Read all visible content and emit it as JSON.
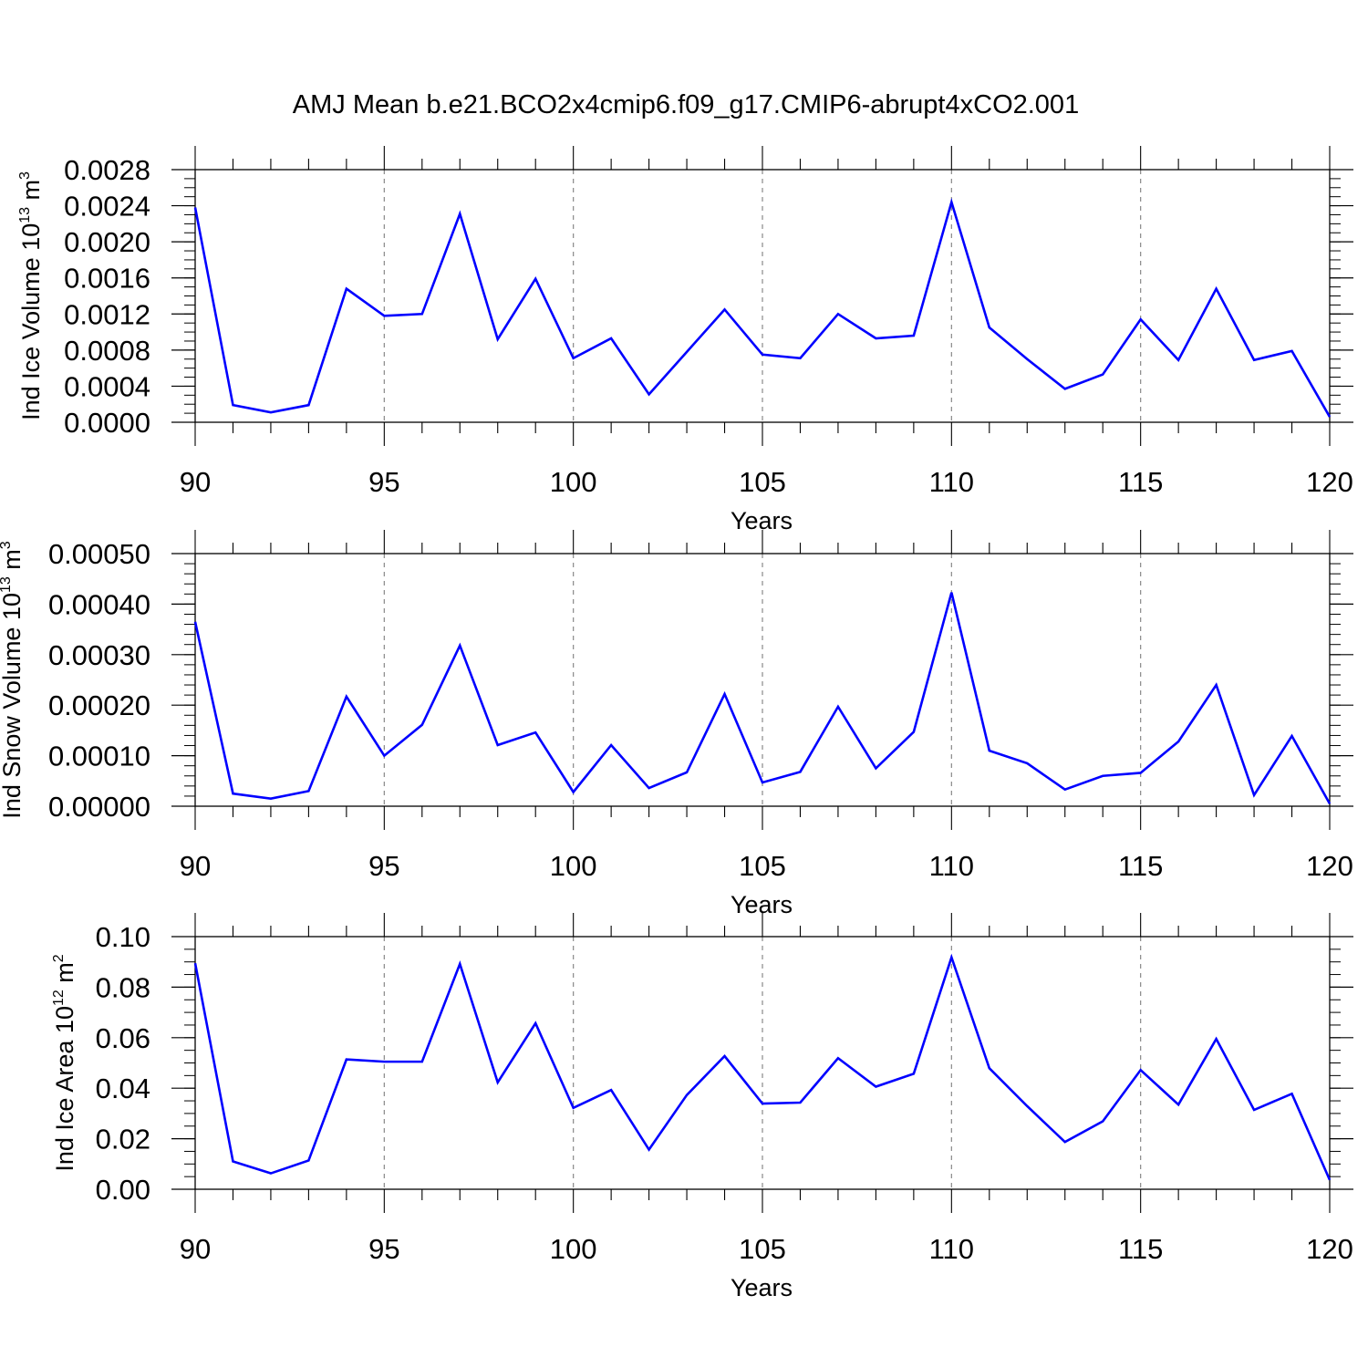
{
  "chart_data": {
    "title": "AMJ Mean b.e21.BCO2x4cmip6.f09_g17.CMIP6-abrupt4xCO2.001",
    "x": [
      90,
      91,
      92,
      93,
      94,
      95,
      96,
      97,
      98,
      99,
      100,
      101,
      102,
      103,
      104,
      105,
      106,
      107,
      108,
      109,
      110,
      111,
      112,
      113,
      114,
      115,
      116,
      117,
      118,
      119,
      120
    ],
    "xlim": [
      90,
      120
    ],
    "x_major_ticks": [
      90,
      95,
      100,
      105,
      110,
      115,
      120
    ],
    "x_tick_labels": [
      "90",
      "95",
      "100",
      "105",
      "110",
      "115",
      "120"
    ],
    "xlabel": "Years",
    "line_color": "#0000ff",
    "grid": "vertical dashed at major x ticks",
    "panels": [
      {
        "type": "line",
        "ylabel_main": "Ind Ice Volume 10",
        "ylabel_exp": "13",
        "ylabel_unit": " m",
        "ylabel_unit_exp": "3",
        "ylim": [
          0,
          0.0028
        ],
        "yticks": [
          0,
          0.0004,
          0.0008,
          0.0012,
          0.0016,
          0.002,
          0.0024,
          0.0028
        ],
        "ytick_labels": [
          "0.0000",
          "0.0004",
          "0.0008",
          "0.0012",
          "0.0016",
          "0.0020",
          "0.0024",
          "0.0028"
        ],
        "y_minor_step": 0.0001,
        "values": [
          0.00238,
          0.00019,
          0.00011,
          0.00019,
          0.00148,
          0.00118,
          0.0012,
          0.00231,
          0.00092,
          0.00159,
          0.00071,
          0.00093,
          0.00031,
          0.00078,
          0.00125,
          0.00075,
          0.00071,
          0.0012,
          0.00093,
          0.00096,
          0.00244,
          0.00105,
          0.0007,
          0.00037,
          0.00053,
          0.00114,
          0.00069,
          0.00148,
          0.00069,
          0.00079,
          6e-05
        ]
      },
      {
        "type": "line",
        "ylabel_main": "Ind Snow Volume 10",
        "ylabel_exp": "13",
        "ylabel_unit": " m",
        "ylabel_unit_exp": "3",
        "ylim": [
          0,
          0.0005
        ],
        "yticks": [
          0,
          0.0001,
          0.0002,
          0.0003,
          0.0004,
          0.0005
        ],
        "ytick_labels": [
          "0.00000",
          "0.00010",
          "0.00020",
          "0.00030",
          "0.00040",
          "0.00050"
        ],
        "y_minor_step": 2e-05,
        "values": [
          0.000365,
          2.5e-05,
          1.5e-05,
          3e-05,
          0.000217,
          0.0001,
          0.000161,
          0.000318,
          0.000121,
          0.000146,
          2.8e-05,
          0.000121,
          3.6e-05,
          6.7e-05,
          0.000222,
          4.7e-05,
          6.8e-05,
          0.000197,
          7.5e-05,
          0.000147,
          0.000423,
          0.00011,
          8.5e-05,
          3.3e-05,
          6e-05,
          6.6e-05,
          0.000128,
          0.00024,
          2.2e-05,
          0.000139,
          5e-06
        ]
      },
      {
        "type": "line",
        "ylabel_main": "Ind Ice Area 10",
        "ylabel_exp": "12",
        "ylabel_unit": " m",
        "ylabel_unit_exp": "2",
        "ylim": [
          0,
          0.1
        ],
        "yticks": [
          0,
          0.02,
          0.04,
          0.06,
          0.08,
          0.1
        ],
        "ytick_labels": [
          "0.00",
          "0.02",
          "0.04",
          "0.06",
          "0.08",
          "0.10"
        ],
        "y_minor_step": 0.005,
        "values": [
          0.0895,
          0.011,
          0.0063,
          0.0114,
          0.0514,
          0.0505,
          0.0505,
          0.0892,
          0.0423,
          0.0657,
          0.0322,
          0.0393,
          0.0157,
          0.0373,
          0.0527,
          0.0339,
          0.0343,
          0.0519,
          0.0406,
          0.0457,
          0.0918,
          0.0479,
          0.0329,
          0.0187,
          0.0269,
          0.0472,
          0.0335,
          0.0595,
          0.0314,
          0.0378,
          0.0037
        ]
      }
    ]
  }
}
